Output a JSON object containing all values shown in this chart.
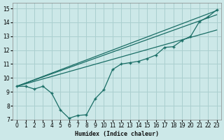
{
  "xlabel": "Humidex (Indice chaleur)",
  "bg_color": "#cce8e8",
  "grid_color": "#aacfcf",
  "line_color": "#1a6e66",
  "xlim": [
    -0.5,
    23.5
  ],
  "ylim": [
    7,
    15.4
  ],
  "xticks": [
    0,
    1,
    2,
    3,
    4,
    5,
    6,
    7,
    8,
    9,
    10,
    11,
    12,
    13,
    14,
    15,
    16,
    17,
    18,
    19,
    20,
    21,
    22,
    23
  ],
  "yticks": [
    7,
    8,
    9,
    10,
    11,
    12,
    13,
    14,
    15
  ],
  "wavy_x": [
    0,
    1,
    2,
    3,
    4,
    5,
    6,
    7,
    8,
    9,
    10,
    11,
    12,
    13,
    14,
    15,
    16,
    17,
    18,
    19,
    20,
    21,
    22,
    23
  ],
  "wavy_y": [
    9.4,
    9.4,
    9.2,
    9.4,
    8.9,
    7.7,
    7.1,
    7.3,
    7.35,
    8.5,
    9.15,
    10.6,
    11.0,
    11.1,
    11.2,
    11.4,
    11.65,
    12.2,
    12.25,
    12.7,
    13.0,
    14.05,
    14.4,
    14.9
  ],
  "line1_x": [
    0,
    23
  ],
  "line1_y": [
    9.4,
    14.85
  ],
  "line2_x": [
    0,
    23
  ],
  "line2_y": [
    9.4,
    14.55
  ],
  "line3_x": [
    0,
    23
  ],
  "line3_y": [
    9.4,
    13.45
  ]
}
